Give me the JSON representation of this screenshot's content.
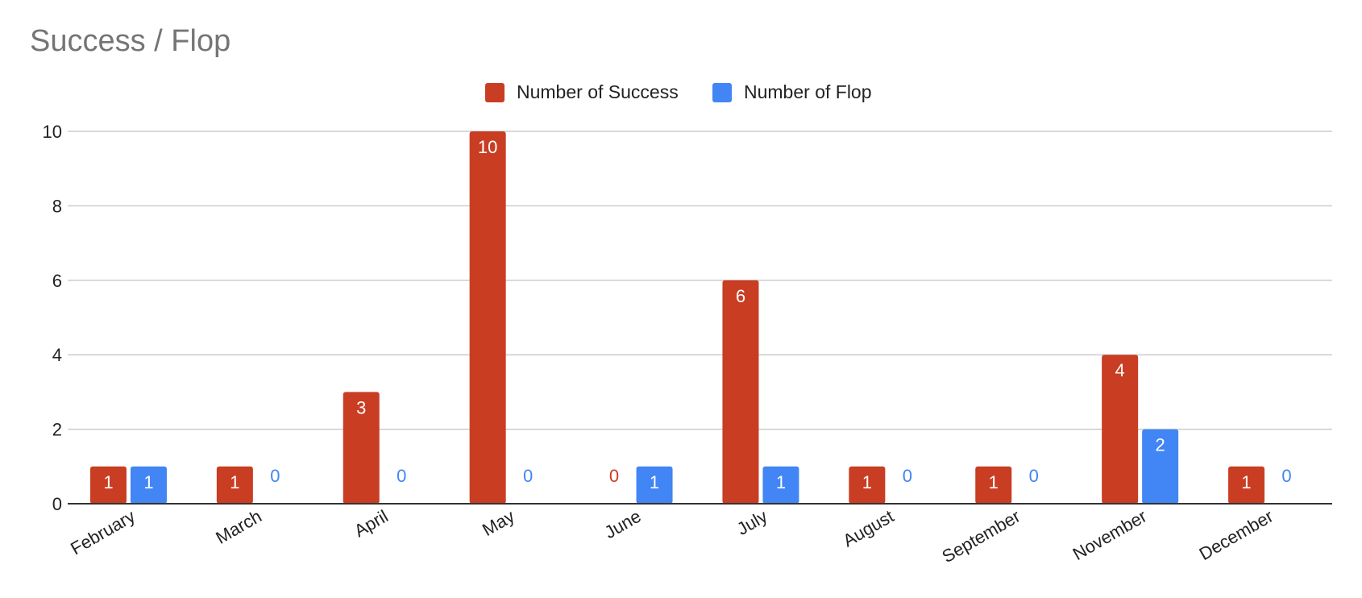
{
  "chart_data": {
    "type": "bar",
    "title": "Success / Flop",
    "categories": [
      "February",
      "March",
      "April",
      "May",
      "June",
      "July",
      "August",
      "September",
      "November",
      "December"
    ],
    "series": [
      {
        "name": "Number of Success",
        "color": "#c93d23",
        "values": [
          1,
          1,
          3,
          10,
          0,
          6,
          1,
          1,
          4,
          1
        ]
      },
      {
        "name": "Number of Flop",
        "color": "#4285f4",
        "values": [
          1,
          0,
          0,
          0,
          1,
          1,
          0,
          0,
          2,
          0
        ]
      }
    ],
    "xlabel": "",
    "ylabel": "",
    "ylim": [
      0,
      10
    ],
    "yticks": [
      "0",
      "2",
      "4",
      "6",
      "8",
      "10"
    ],
    "grid": true,
    "legend": "top-center",
    "data_labels": true
  }
}
